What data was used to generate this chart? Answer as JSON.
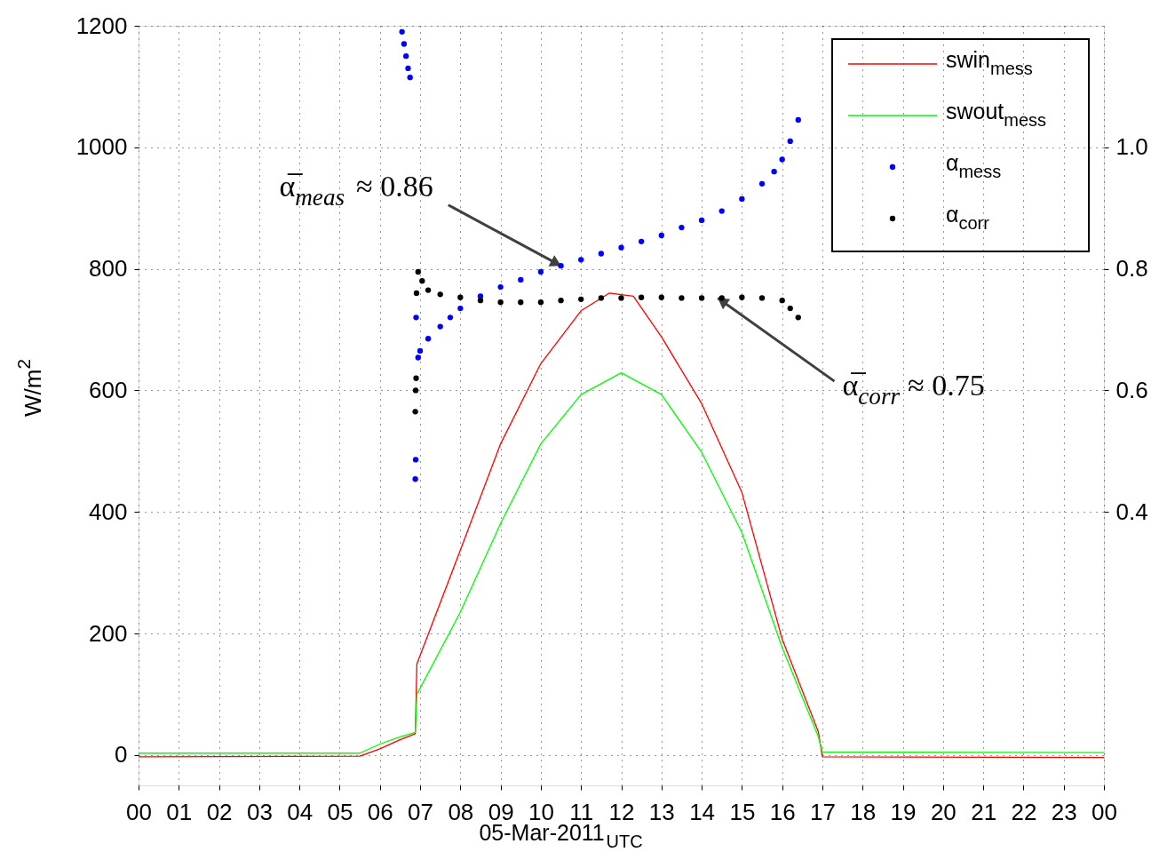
{
  "chart_data": {
    "type": "line",
    "xlabel": "05-Mar-2011$_{UTC}$",
    "ylabel": "W/m$^{2}$",
    "xlim": [
      0,
      24
    ],
    "xticks": [
      {
        "value": 0,
        "label": "00"
      },
      {
        "value": 1,
        "label": "01"
      },
      {
        "value": 2,
        "label": "02"
      },
      {
        "value": 3,
        "label": "03"
      },
      {
        "value": 4,
        "label": "04"
      },
      {
        "value": 5,
        "label": "05"
      },
      {
        "value": 6,
        "label": "06"
      },
      {
        "value": 7,
        "label": "07"
      },
      {
        "value": 8,
        "label": "08"
      },
      {
        "value": 9,
        "label": "09"
      },
      {
        "value": 10,
        "label": "10"
      },
      {
        "value": 11,
        "label": "11"
      },
      {
        "value": 12,
        "label": "12"
      },
      {
        "value": 13,
        "label": "13"
      },
      {
        "value": 14,
        "label": "14"
      },
      {
        "value": 15,
        "label": "15"
      },
      {
        "value": 16,
        "label": "16"
      },
      {
        "value": 17,
        "label": "17"
      },
      {
        "value": 18,
        "label": "18"
      },
      {
        "value": 19,
        "label": "19"
      },
      {
        "value": 20,
        "label": "20"
      },
      {
        "value": 21,
        "label": "21"
      },
      {
        "value": 22,
        "label": "22"
      },
      {
        "value": 23,
        "label": "23"
      },
      {
        "value": 24,
        "label": "00"
      }
    ],
    "ylim": [
      -50,
      1200
    ],
    "yticks": [
      0,
      200,
      400,
      600,
      800,
      1000,
      1200
    ],
    "y2lim": [
      -0.05,
      1.2
    ],
    "y2ticks": [
      0.4,
      0.6,
      0.8,
      {
        "value": 1.0,
        "label": "1.0"
      }
    ],
    "grid": true,
    "legend": "top right",
    "series": [
      {
        "name": "swin$_{mess}$",
        "color": "#ff0000",
        "x": [
          0,
          5.5,
          6.0,
          6.5,
          6.88,
          6.92,
          8,
          9,
          10,
          11,
          11.7,
          12.3,
          13,
          14,
          15,
          16,
          16.9,
          17.0,
          24
        ],
        "values": [
          -3,
          -2,
          10,
          25,
          35,
          150,
          337,
          512,
          644,
          731,
          760,
          755,
          688,
          578,
          432,
          191,
          38,
          -3,
          -4
        ]
      },
      {
        "name": "swout$_{mess}$",
        "color": "#00ff00",
        "x": [
          0,
          5.5,
          6.0,
          6.5,
          6.88,
          6.92,
          8,
          9,
          10,
          11,
          12,
          13,
          14,
          15,
          16,
          16.9,
          17.0,
          24
        ],
        "values": [
          3,
          3,
          18,
          30,
          37,
          100,
          235,
          381,
          512,
          593,
          629,
          593,
          498,
          366,
          177,
          30,
          5,
          4
        ]
      },
      {
        "name": "α$_{mess}$",
        "type": "scatter",
        "axis": "y2",
        "marker": "circle",
        "color": "#0000ff",
        "x": [
          6.55,
          6.6,
          6.65,
          6.7,
          6.75,
          6.88,
          6.89,
          6.9,
          6.95,
          7.0,
          7.2,
          7.5,
          7.75,
          8.0,
          8.5,
          9.0,
          9.5,
          10.0,
          10.5,
          11.0,
          11.5,
          12.0,
          12.5,
          13.0,
          13.5,
          14.0,
          14.5,
          15.0,
          15.5,
          15.8,
          16.0,
          16.2,
          16.4
        ],
        "values": [
          1.19,
          1.17,
          1.15,
          1.13,
          1.115,
          0.454,
          0.486,
          0.72,
          0.654,
          0.665,
          0.685,
          0.705,
          0.72,
          0.735,
          0.755,
          0.77,
          0.782,
          0.795,
          0.805,
          0.815,
          0.825,
          0.835,
          0.845,
          0.855,
          0.868,
          0.88,
          0.895,
          0.915,
          0.94,
          0.96,
          0.98,
          1.01,
          1.045
        ]
      },
      {
        "name": "α$_{corr}$",
        "type": "scatter",
        "axis": "y2",
        "marker": "circle",
        "color": "#000000",
        "x": [
          6.88,
          6.89,
          6.9,
          6.91,
          6.95,
          7.05,
          7.2,
          7.5,
          8.0,
          8.5,
          9.0,
          9.5,
          10.0,
          10.5,
          11.0,
          11.5,
          12.0,
          12.5,
          13.0,
          13.5,
          14.0,
          14.5,
          15.0,
          15.5,
          16.0,
          16.2,
          16.4
        ],
        "values": [
          0.565,
          0.6,
          0.62,
          0.76,
          0.795,
          0.78,
          0.765,
          0.758,
          0.753,
          0.748,
          0.745,
          0.745,
          0.745,
          0.748,
          0.75,
          0.752,
          0.752,
          0.753,
          0.753,
          0.752,
          0.752,
          0.752,
          0.753,
          0.752,
          0.748,
          0.735,
          0.72
        ]
      }
    ],
    "annotations": [
      {
        "text": "α̅$_{meas}$ ≈ 0.86",
        "x": 10.5,
        "y": 805
      },
      {
        "text": "α̅$_{corr}$ ≈ 0.75",
        "x": 14.4,
        "y": 752
      }
    ]
  }
}
